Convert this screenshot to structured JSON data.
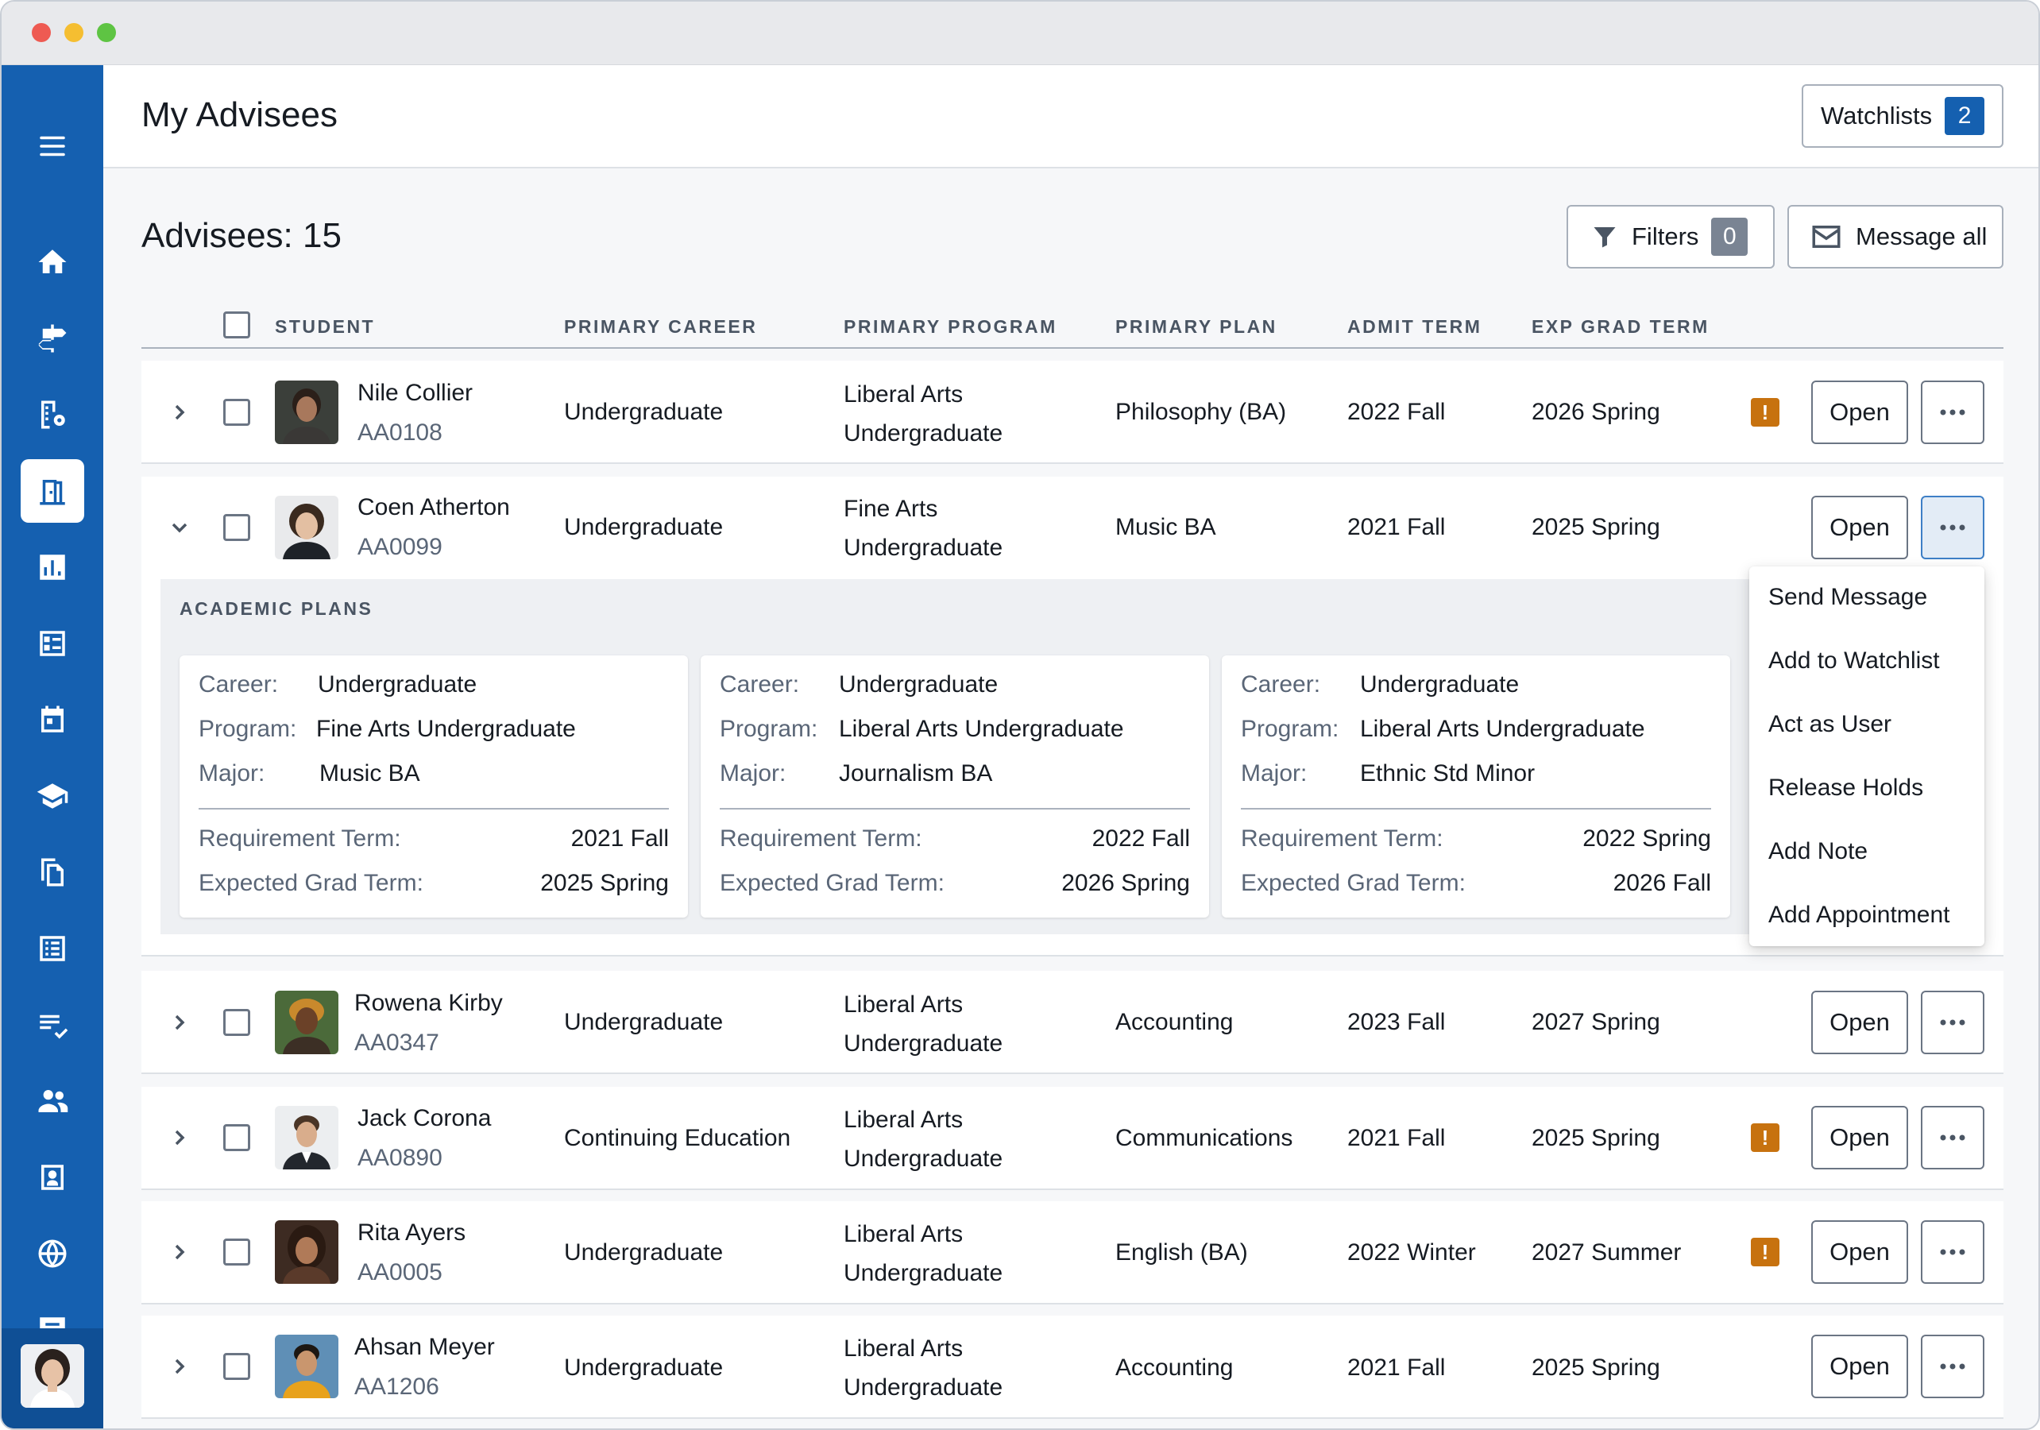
{
  "header": {
    "title": "My Advisees",
    "watchlists_label": "Watchlists",
    "watchlists_count": "2"
  },
  "toolbar": {
    "count_label": "Advisees: 15",
    "filters_label": "Filters",
    "filters_count": "0",
    "message_all_label": "Message all"
  },
  "table": {
    "columns": [
      "STUDENT",
      "PRIMARY CAREER",
      "PRIMARY PROGRAM",
      "PRIMARY PLAN",
      "ADMIT TERM",
      "EXP GRAD TERM"
    ],
    "open_label": "Open",
    "warning_glyph": "!",
    "rows": [
      {
        "name": "Nile Collier",
        "id": "AA0108",
        "career": "Undergraduate",
        "program_l1": "Liberal Arts",
        "program_l2": "Undergraduate",
        "plan": "Philosophy (BA)",
        "admit": "2022 Fall",
        "grad": "2026 Spring",
        "warning": true,
        "expanded": false
      },
      {
        "name": "Coen Atherton",
        "id": "AA0099",
        "career": "Undergraduate",
        "program_l1": "Fine Arts",
        "program_l2": "Undergraduate",
        "plan": "Music BA",
        "admit": "2021 Fall",
        "grad": "2025 Spring",
        "warning": false,
        "expanded": true
      },
      {
        "name": "Rowena Kirby",
        "id": "AA0347",
        "career": "Undergraduate",
        "program_l1": "Liberal Arts",
        "program_l2": "Undergraduate",
        "plan": "Accounting",
        "admit": "2023 Fall",
        "grad": "2027 Spring",
        "warning": false,
        "expanded": false
      },
      {
        "name": "Jack Corona",
        "id": "AA0890",
        "career": "Continuing Education",
        "program_l1": "Liberal Arts",
        "program_l2": "Undergraduate",
        "plan": "Communications",
        "admit": "2021 Fall",
        "grad": "2025 Spring",
        "warning": true,
        "expanded": false
      },
      {
        "name": "Rita Ayers",
        "id": "AA0005",
        "career": "Undergraduate",
        "program_l1": "Liberal Arts",
        "program_l2": "Undergraduate",
        "plan": "English (BA)",
        "admit": "2022 Winter",
        "grad": "2027 Summer",
        "warning": true,
        "expanded": false
      },
      {
        "name": "Ahsan Meyer",
        "id": "AA1206",
        "career": "Undergraduate",
        "program_l1": "Liberal Arts",
        "program_l2": "Undergraduate",
        "plan": "Accounting",
        "admit": "2021 Fall",
        "grad": "2025 Spring",
        "warning": false,
        "expanded": false
      }
    ]
  },
  "academic_plans": {
    "title": "ACADEMIC PLANS",
    "labels": {
      "career": "Career:",
      "program": "Program:",
      "major": "Major:",
      "req_term": "Requirement Term:",
      "grad_term": "Expected Grad Term:"
    },
    "cards": [
      {
        "career": "Undergraduate",
        "program": "Fine Arts Undergraduate",
        "major": "Music BA",
        "req_term": "2021 Fall",
        "grad_term": "2025 Spring"
      },
      {
        "career": "Undergraduate",
        "program": "Liberal Arts Undergraduate",
        "major": "Journalism BA",
        "req_term": "2022 Fall",
        "grad_term": "2026 Spring"
      },
      {
        "career": "Undergraduate",
        "program": "Liberal Arts Undergraduate",
        "major": "Ethnic Std Minor",
        "req_term": "2022 Spring",
        "grad_term": "2026 Fall"
      }
    ]
  },
  "menu": {
    "items": [
      "Send Message",
      "Add to Watchlist",
      "Act as User",
      "Release Holds",
      "Add Note",
      "Add Appointment"
    ]
  },
  "sidebar": {
    "items": [
      "menu-icon",
      "home-icon",
      "signpost-icon",
      "building-settings-icon",
      "door-icon",
      "bar-chart-icon",
      "checklist-card-icon",
      "calendar-icon",
      "graduation-cap-icon",
      "documents-icon",
      "list-icon",
      "task-list-icon",
      "people-icon",
      "contact-card-icon",
      "globe-icon",
      "chat-icon"
    ],
    "active": "door-icon"
  },
  "colors": {
    "brand": "#1560b0",
    "warning": "#c7720f",
    "badge_gray": "#7a8493"
  }
}
